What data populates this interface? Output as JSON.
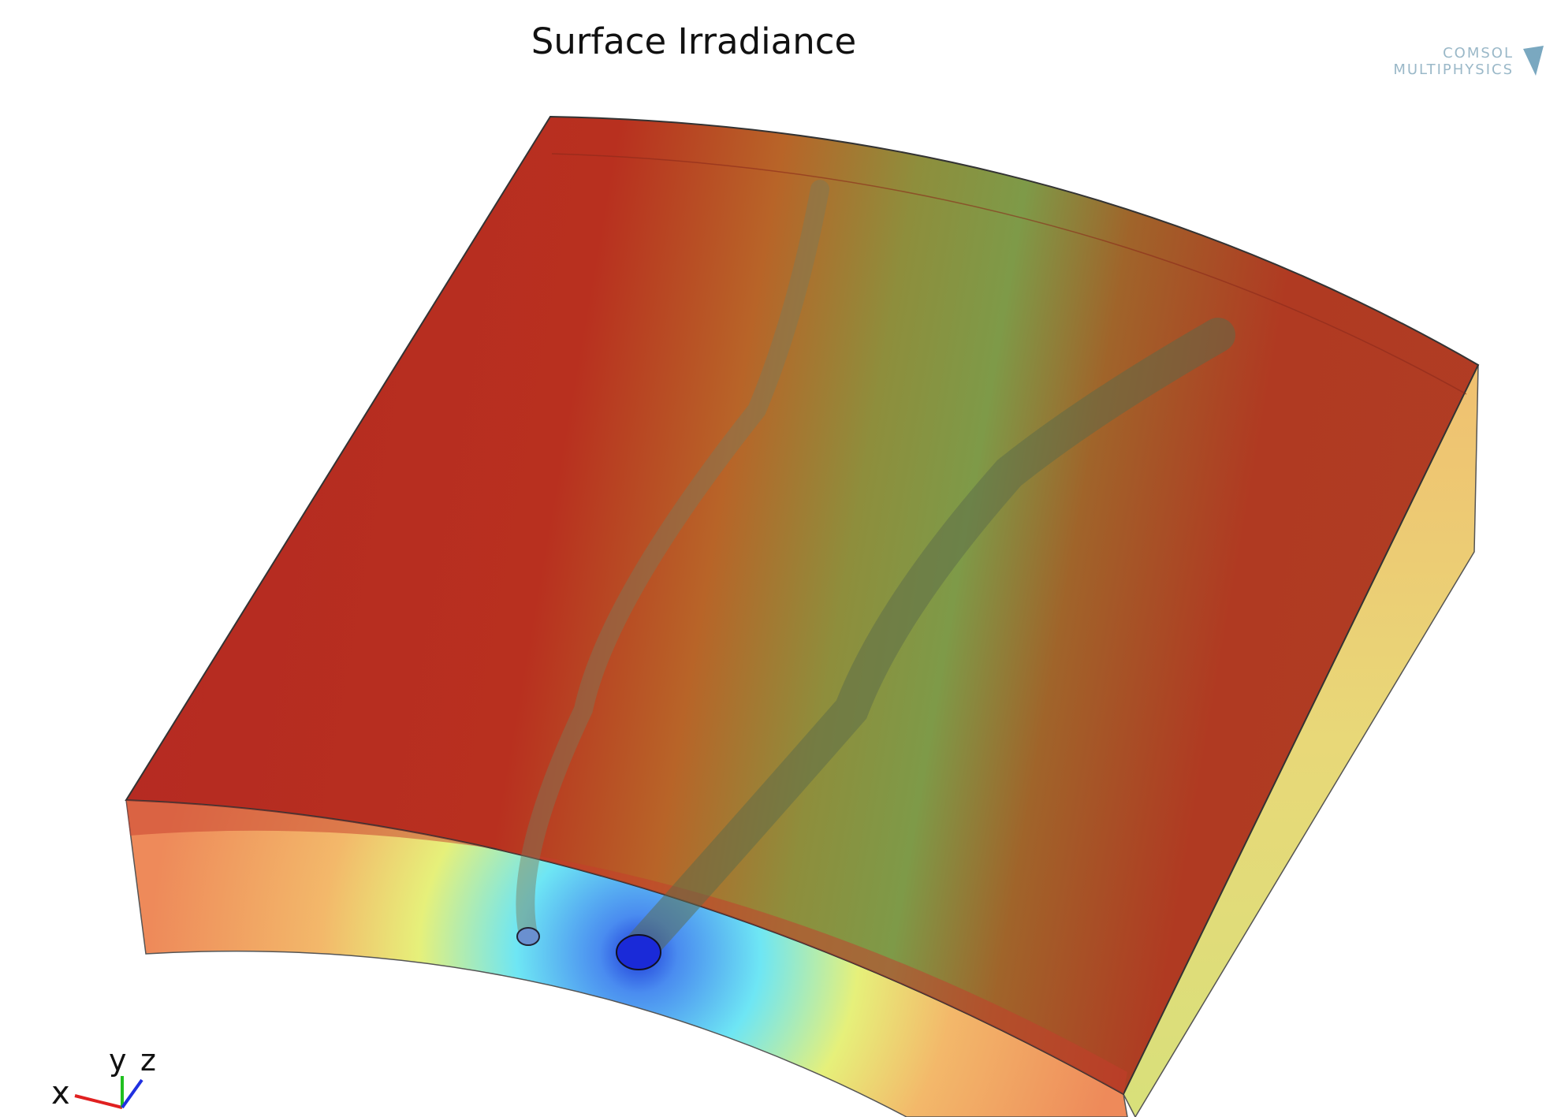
{
  "title": "Surface Irradiance",
  "logo": {
    "line1": "COMSOL",
    "line2": "MULTIPHYSICS"
  },
  "triad": {
    "x": "x",
    "y": "y",
    "z": "z"
  }
}
